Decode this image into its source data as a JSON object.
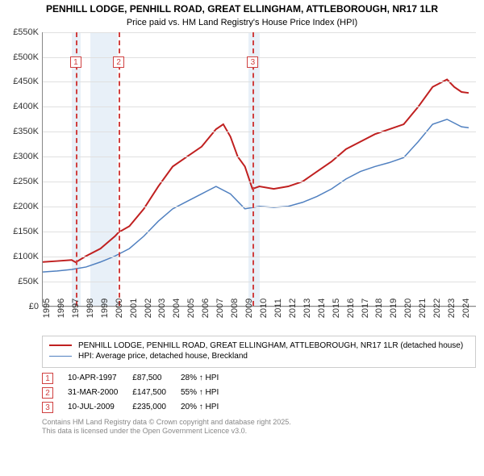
{
  "title": "PENHILL LODGE, PENHILL ROAD, GREAT ELLINGHAM, ATTLEBOROUGH, NR17 1LR",
  "subtitle": "Price paid vs. HM Land Registry's House Price Index (HPI)",
  "chart": {
    "type": "line",
    "x_min": 1995,
    "x_max": 2025,
    "y_min": 0,
    "y_max": 550000,
    "y_ticks": [
      0,
      50000,
      100000,
      150000,
      200000,
      250000,
      300000,
      350000,
      400000,
      450000,
      500000,
      550000
    ],
    "y_tick_labels": [
      "£0",
      "£50K",
      "£100K",
      "£150K",
      "£200K",
      "£250K",
      "£300K",
      "£350K",
      "£400K",
      "£450K",
      "£500K",
      "£550K"
    ],
    "x_ticks": [
      1995,
      1996,
      1997,
      1998,
      1999,
      2000,
      2001,
      2002,
      2003,
      2004,
      2005,
      2006,
      2007,
      2008,
      2009,
      2010,
      2011,
      2012,
      2013,
      2014,
      2015,
      2016,
      2017,
      2018,
      2019,
      2020,
      2021,
      2022,
      2023,
      2024
    ],
    "bands": [
      {
        "from": 1997.0,
        "to": 1997.6
      },
      {
        "from": 1998.3,
        "to": 2000.2
      },
      {
        "from": 2009.2,
        "to": 2010.0
      }
    ],
    "markers": [
      {
        "n": "1",
        "x": 1997.28
      },
      {
        "n": "2",
        "x": 2000.25
      },
      {
        "n": "3",
        "x": 2009.52
      }
    ],
    "series": [
      {
        "name": "property",
        "color": "#c02020",
        "width": 2,
        "points": [
          [
            1995,
            88000
          ],
          [
            1996,
            90000
          ],
          [
            1997,
            92000
          ],
          [
            1997.28,
            87500
          ],
          [
            1998,
            100000
          ],
          [
            1999,
            115000
          ],
          [
            2000,
            140000
          ],
          [
            2000.25,
            147500
          ],
          [
            2001,
            160000
          ],
          [
            2002,
            195000
          ],
          [
            2003,
            240000
          ],
          [
            2004,
            280000
          ],
          [
            2005,
            300000
          ],
          [
            2006,
            320000
          ],
          [
            2007,
            355000
          ],
          [
            2007.5,
            365000
          ],
          [
            2008,
            340000
          ],
          [
            2008.5,
            300000
          ],
          [
            2009,
            280000
          ],
          [
            2009.52,
            235000
          ],
          [
            2010,
            240000
          ],
          [
            2011,
            235000
          ],
          [
            2012,
            240000
          ],
          [
            2013,
            250000
          ],
          [
            2014,
            270000
          ],
          [
            2015,
            290000
          ],
          [
            2016,
            315000
          ],
          [
            2017,
            330000
          ],
          [
            2018,
            345000
          ],
          [
            2019,
            355000
          ],
          [
            2020,
            365000
          ],
          [
            2021,
            400000
          ],
          [
            2022,
            440000
          ],
          [
            2023,
            455000
          ],
          [
            2023.5,
            440000
          ],
          [
            2024,
            430000
          ],
          [
            2024.5,
            428000
          ]
        ]
      },
      {
        "name": "hpi",
        "color": "#5080c0",
        "width": 1.5,
        "points": [
          [
            1995,
            68000
          ],
          [
            1996,
            70000
          ],
          [
            1997,
            73000
          ],
          [
            1998,
            78000
          ],
          [
            1999,
            88000
          ],
          [
            2000,
            100000
          ],
          [
            2001,
            115000
          ],
          [
            2002,
            140000
          ],
          [
            2003,
            170000
          ],
          [
            2004,
            195000
          ],
          [
            2005,
            210000
          ],
          [
            2006,
            225000
          ],
          [
            2007,
            240000
          ],
          [
            2008,
            225000
          ],
          [
            2009,
            195000
          ],
          [
            2010,
            200000
          ],
          [
            2011,
            198000
          ],
          [
            2012,
            200000
          ],
          [
            2013,
            208000
          ],
          [
            2014,
            220000
          ],
          [
            2015,
            235000
          ],
          [
            2016,
            255000
          ],
          [
            2017,
            270000
          ],
          [
            2018,
            280000
          ],
          [
            2019,
            288000
          ],
          [
            2020,
            298000
          ],
          [
            2021,
            330000
          ],
          [
            2022,
            365000
          ],
          [
            2023,
            375000
          ],
          [
            2024,
            360000
          ],
          [
            2024.5,
            358000
          ]
        ]
      }
    ]
  },
  "legend": [
    {
      "color": "#c02020",
      "width": 2,
      "label": "PENHILL LODGE, PENHILL ROAD, GREAT ELLINGHAM, ATTLEBOROUGH, NR17 1LR (detached house)"
    },
    {
      "color": "#5080c0",
      "width": 1.5,
      "label": "HPI: Average price, detached house, Breckland"
    }
  ],
  "events": [
    {
      "n": "1",
      "date": "10-APR-1997",
      "price": "£87,500",
      "delta": "28% ↑ HPI"
    },
    {
      "n": "2",
      "date": "31-MAR-2000",
      "price": "£147,500",
      "delta": "55% ↑ HPI"
    },
    {
      "n": "3",
      "date": "10-JUL-2009",
      "price": "£235,000",
      "delta": "20% ↑ HPI"
    }
  ],
  "footer1": "Contains HM Land Registry data © Crown copyright and database right 2025.",
  "footer2": "This data is licensed under the Open Government Licence v3.0."
}
